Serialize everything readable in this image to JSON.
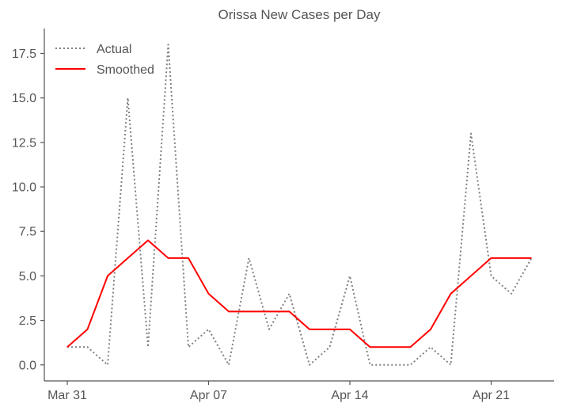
{
  "chart_data": {
    "type": "line",
    "title": "Orissa New Cases per Day",
    "xlabel": "",
    "ylabel": "",
    "x": [
      "Mar 31",
      "Apr 01",
      "Apr 02",
      "Apr 03",
      "Apr 04",
      "Apr 05",
      "Apr 06",
      "Apr 07",
      "Apr 08",
      "Apr 09",
      "Apr 10",
      "Apr 11",
      "Apr 12",
      "Apr 13",
      "Apr 14",
      "Apr 15",
      "Apr 16",
      "Apr 17",
      "Apr 18",
      "Apr 19",
      "Apr 20",
      "Apr 21",
      "Apr 22",
      "Apr 23"
    ],
    "x_ticks": [
      "Mar 31",
      "Apr 07",
      "Apr 14",
      "Apr 21"
    ],
    "y_ticks": [
      "0.0",
      "2.5",
      "5.0",
      "7.5",
      "10.0",
      "12.5",
      "15.0",
      "17.5"
    ],
    "ylim": [
      -0.9,
      18.9
    ],
    "grid": false,
    "legend_position": "top-left",
    "series": [
      {
        "name": "Actual",
        "style": "dotted",
        "color": "#808080",
        "values": [
          1,
          1,
          0,
          15,
          1,
          18,
          1,
          2,
          0,
          6,
          2,
          4,
          0,
          1,
          5,
          0,
          0,
          0,
          1,
          0,
          13,
          5,
          4,
          6
        ]
      },
      {
        "name": "Smoothed",
        "style": "solid",
        "color": "#ff0000",
        "values": [
          1,
          2,
          5,
          6,
          7,
          6,
          6,
          4,
          3,
          3,
          3,
          3,
          2,
          2,
          2,
          1,
          1,
          1,
          2,
          4,
          5,
          6,
          6,
          6
        ]
      }
    ]
  }
}
